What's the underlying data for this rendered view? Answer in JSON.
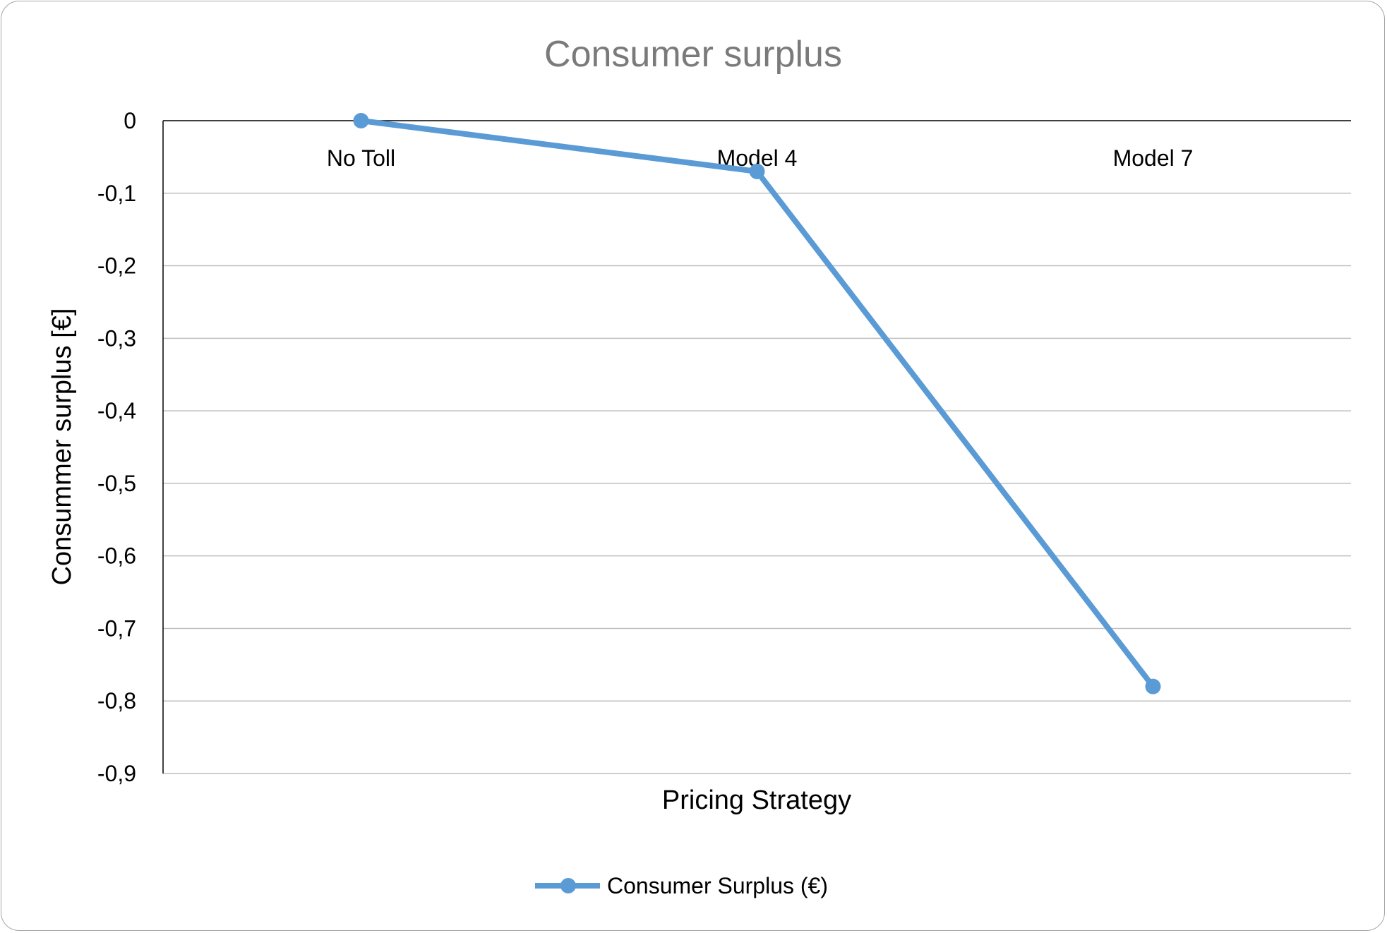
{
  "chart_data": {
    "type": "line",
    "title": "Consumer surplus",
    "xlabel": "Pricing Strategy",
    "ylabel": "Consummer surplus [€]",
    "categories": [
      "No Toll",
      "Model 4",
      "Model 7"
    ],
    "series": [
      {
        "name": "Consumer Surplus (€)",
        "values": [
          0,
          -0.07,
          -0.78
        ],
        "color": "#5b9bd5"
      }
    ],
    "ylim": [
      -0.9,
      0
    ],
    "yticks": [
      0,
      -0.1,
      -0.2,
      -0.3,
      -0.4,
      -0.5,
      -0.6,
      -0.7,
      -0.8,
      -0.9
    ],
    "ytick_labels": [
      "0",
      "-0,1",
      "-0,2",
      "-0,3",
      "-0,4",
      "-0,5",
      "-0,6",
      "-0,7",
      "-0,8",
      "-0,9"
    ],
    "grid": true,
    "legend_position": "bottom",
    "category_labels_position": "top"
  }
}
